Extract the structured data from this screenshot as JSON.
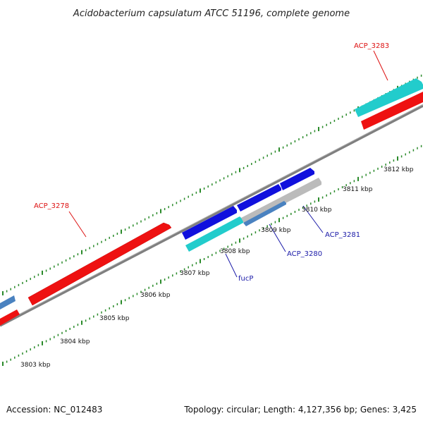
{
  "title": "Acidobacterium capsulatum ATCC 51196, complete genome",
  "footer": {
    "accession": "Accession: NC_012483",
    "summary": "Topology: circular; Length: 4,127,356 bp; Genes: 3,425"
  },
  "colors": {
    "backbone": "#7f7f7f",
    "tick": "#2a8a2a",
    "cds_red": "#ee1111",
    "cds_blue": "#1010dd",
    "cds_cyan": "#22cccc",
    "cds_steel": "#4a82c0",
    "cds_gray": "#bbbbbb",
    "label_red": "#dd1111",
    "label_blue": "#1a1aa8"
  },
  "scale_labels": [
    "3803 kbp",
    "3804 kbp",
    "3805 kbp",
    "3806 kbp",
    "3807 kbp",
    "3808 kbp",
    "3809 kbp",
    "3810 kbp",
    "3811 kbp",
    "3812 kbp"
  ],
  "gene_labels": [
    {
      "text": "ACP_3283",
      "color": "red"
    },
    {
      "text": "ACP_3278",
      "color": "red"
    },
    {
      "text": "ACP_3281",
      "color": "blue"
    },
    {
      "text": "ACP_3280",
      "color": "blue"
    },
    {
      "text": "fucP",
      "color": "blue"
    }
  ]
}
